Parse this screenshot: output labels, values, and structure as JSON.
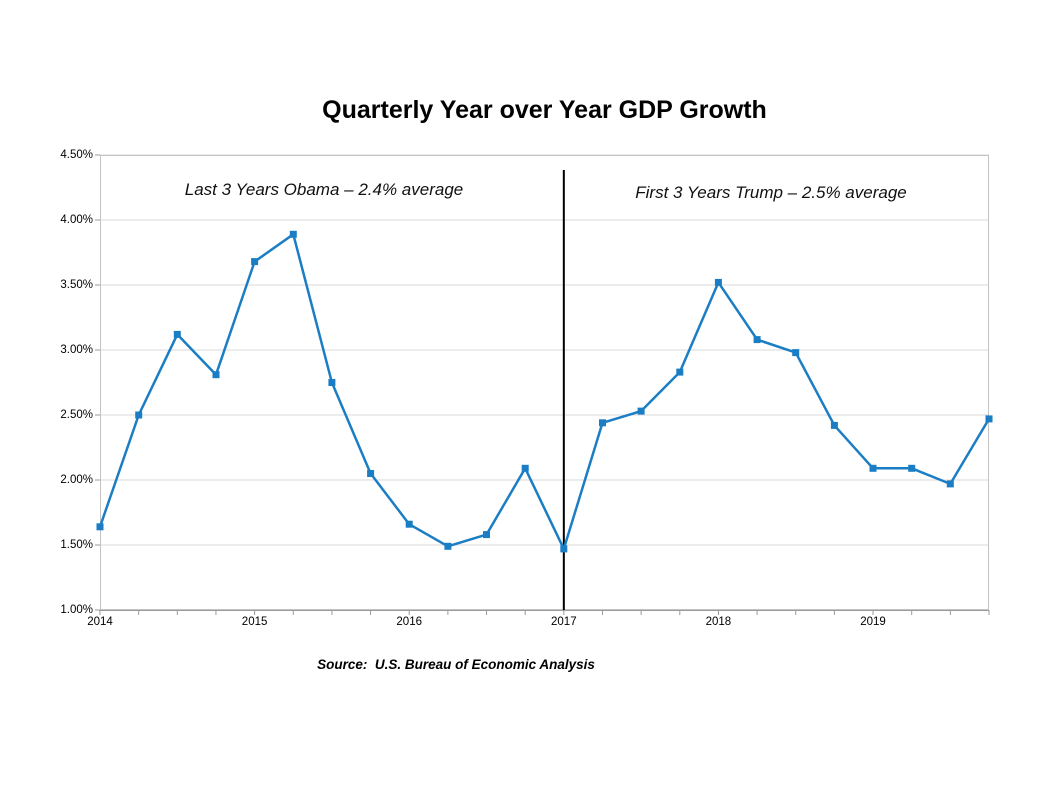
{
  "chart": {
    "title": "Quarterly Year over Year GDP Growth",
    "annotation_left": "Last 3 Years Obama – 2.4% average",
    "annotation_right": "First 3 Years Trump – 2.5% average",
    "source": "Source:  U.S. Bureau of Economic Analysis"
  },
  "chart_data": {
    "type": "line",
    "title": "Quarterly Year over Year GDP Growth",
    "series_name": "Quarterly year-over-year GDP growth (%)",
    "x": [
      "2014 Q1",
      "2014 Q2",
      "2014 Q3",
      "2014 Q4",
      "2015 Q1",
      "2015 Q2",
      "2015 Q3",
      "2015 Q4",
      "2016 Q1",
      "2016 Q2",
      "2016 Q3",
      "2016 Q4",
      "2017 Q1",
      "2017 Q2",
      "2017 Q3",
      "2017 Q4",
      "2018 Q1",
      "2018 Q2",
      "2018 Q3",
      "2018 Q4",
      "2019 Q1",
      "2019 Q2",
      "2019 Q3",
      "2019 Q4"
    ],
    "values": [
      1.64,
      2.5,
      3.12,
      2.81,
      3.68,
      3.89,
      2.75,
      2.05,
      1.66,
      1.49,
      1.58,
      2.09,
      1.47,
      2.44,
      2.53,
      2.83,
      3.52,
      3.08,
      2.98,
      2.42,
      2.09,
      2.09,
      1.97,
      2.47
    ],
    "ylim": [
      1.0,
      4.5
    ],
    "y_ticks": [
      1.0,
      1.5,
      2.0,
      2.5,
      3.0,
      3.5,
      4.0,
      4.5
    ],
    "y_tick_labels": [
      "1.00%",
      "1.50%",
      "2.00%",
      "2.50%",
      "3.00%",
      "3.50%",
      "4.00%",
      "4.50%"
    ],
    "x_tick_labels": [
      "2014",
      "2015",
      "2016",
      "2017",
      "2018",
      "2019"
    ],
    "x_tick_indices": [
      0,
      4,
      8,
      12,
      16,
      20
    ],
    "divider_index": 12,
    "grid": true,
    "legend": "none",
    "marker": "square",
    "annotations": [
      {
        "text": "Last 3 Years Obama – 2.4% average",
        "region": "2014-2016"
      },
      {
        "text": "First 3 Years Trump – 2.5% average",
        "region": "2017-2019"
      }
    ],
    "colors": {
      "line": "#1b7ec4",
      "marker": "#1b7ec4",
      "divider": "#000000",
      "gridline": "#d9d9d9",
      "border": "#c3c3c3",
      "axis": "#9b9b9b",
      "text": "#000000"
    }
  }
}
